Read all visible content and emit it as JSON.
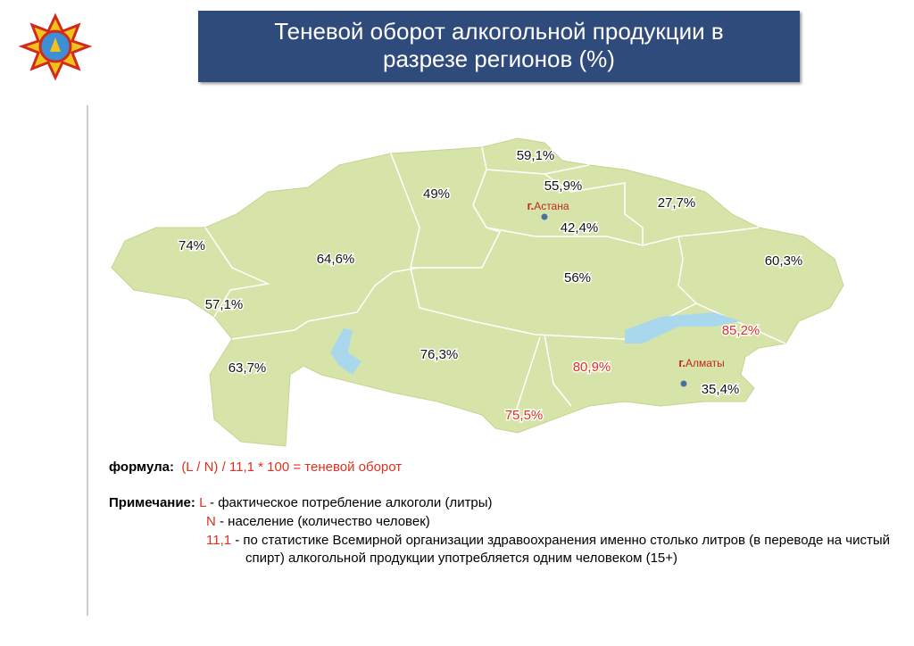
{
  "header": {
    "title": "Теневой оборот алкогольной продукции в разрезе регионов (%)"
  },
  "map": {
    "regions": [
      {
        "label": "59,1%",
        "highlight": false
      },
      {
        "label": "55,9%",
        "highlight": false
      },
      {
        "label": "49%",
        "highlight": false
      },
      {
        "label": "27,7%",
        "highlight": false
      },
      {
        "label": "42,4%",
        "highlight": false
      },
      {
        "label": "74%",
        "highlight": false
      },
      {
        "label": "64,6%",
        "highlight": false
      },
      {
        "label": "60,3%",
        "highlight": false
      },
      {
        "label": "56%",
        "highlight": false
      },
      {
        "label": "57,1%",
        "highlight": false
      },
      {
        "label": "85,2%",
        "highlight": true
      },
      {
        "label": "76,3%",
        "highlight": false
      },
      {
        "label": "80,9%",
        "highlight": true
      },
      {
        "label": "63,7%",
        "highlight": false
      },
      {
        "label": "75,5%",
        "highlight": true
      },
      {
        "label": "35,4%",
        "highlight": false
      }
    ],
    "cities": [
      {
        "prefix": "г.",
        "name": "Астана"
      },
      {
        "prefix": "г.",
        "name": "Алматы"
      }
    ]
  },
  "formula": {
    "label": "формула:",
    "text": "(L / N) / 11,1 * 100 = теневой оборот"
  },
  "note": {
    "label": "Примечание:",
    "items": [
      {
        "term": "L",
        "text": "- фактическое потребление алкоголи (литры)"
      },
      {
        "term": "N",
        "text": "- население (количество человек)"
      },
      {
        "term": "11,1",
        "text": "- по статистике Всемирной организации здравоохранения именно столько литров (в переводе на чистый спирт) алкогольной продукции употребляется одним человеком (15+)"
      }
    ]
  }
}
